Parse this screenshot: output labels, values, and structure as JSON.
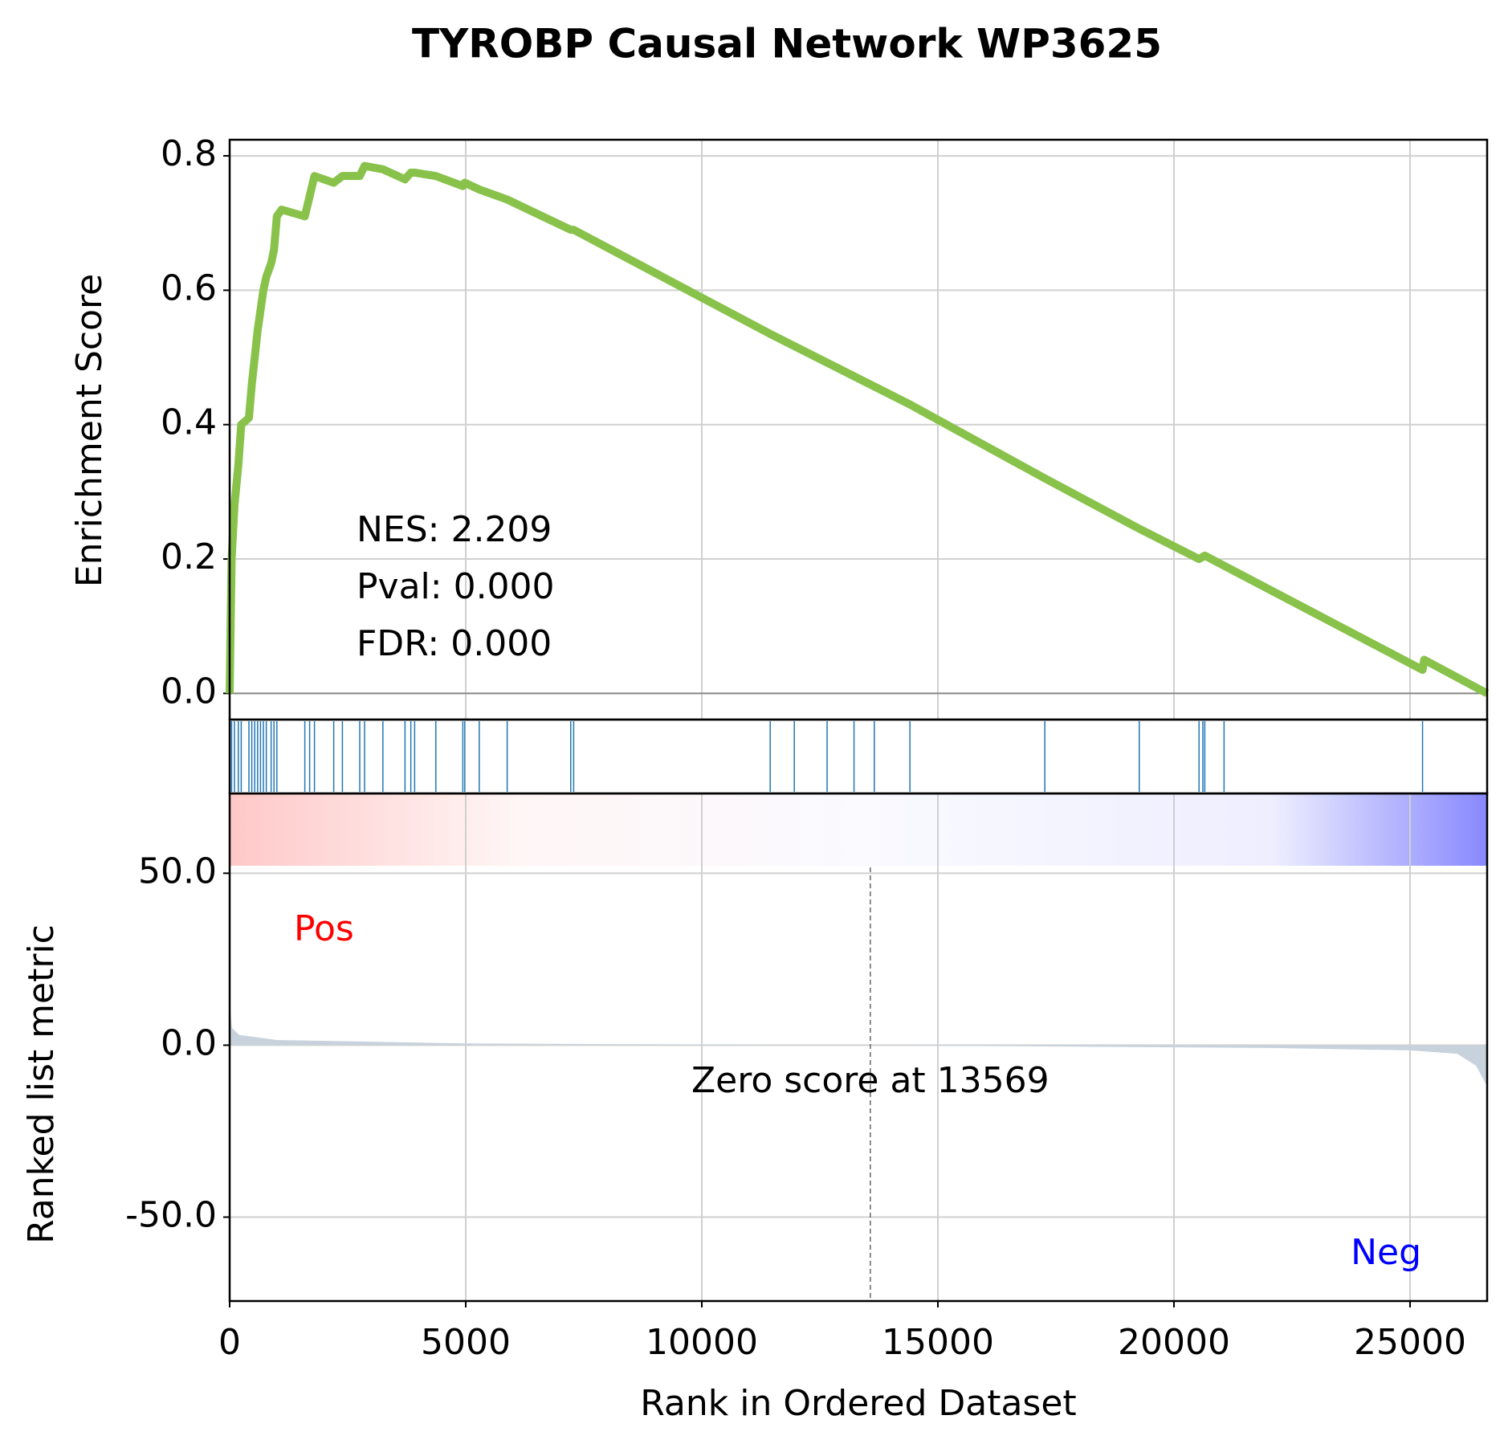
{
  "chart_data": [
    {
      "type": "line",
      "title": "TYROBP Causal Network WP3625",
      "ylabel": "Enrichment Score",
      "color": "#88c24a",
      "x": [
        0,
        41,
        102,
        184,
        245,
        408,
        469,
        531,
        592,
        653,
        714,
        776,
        878,
        939,
        1000,
        1100,
        1592,
        1694,
        1796,
        2204,
        2388,
        2755,
        2857,
        3245,
        3714,
        3837,
        3918,
        4367,
        4939,
        4980,
        5286,
        5878,
        7224,
        7286,
        11449,
        14408,
        17265,
        19265,
        20531,
        20653,
        21061,
        25265,
        25300,
        26632
      ],
      "values": [
        0,
        0.2,
        0.28,
        0.34,
        0.4,
        0.41,
        0.46,
        0.5,
        0.54,
        0.57,
        0.6,
        0.62,
        0.64,
        0.66,
        0.71,
        0.72,
        0.71,
        0.74,
        0.77,
        0.76,
        0.77,
        0.77,
        0.785,
        0.78,
        0.765,
        0.775,
        0.775,
        0.77,
        0.755,
        0.76,
        0.75,
        0.735,
        0.69,
        0.69,
        0.535,
        0.43,
        0.32,
        0.245,
        0.2,
        0.205,
        0.19,
        0.035,
        0.05,
        0
      ],
      "xlim": [
        0,
        26633
      ],
      "ylim": [
        -0.039,
        0.824
      ],
      "yticks": [
        {
          "value": 0,
          "label": "0.0"
        },
        0.2,
        0.4,
        0.6,
        0.8
      ],
      "annotations": [
        "NES: 2.209",
        "Pval: 0.000",
        "FDR: 0.000"
      ],
      "grid": true
    },
    {
      "type": "hits",
      "color": "#1f77b4",
      "xlim": [
        0,
        26633
      ],
      "x": [
        41,
        102,
        184,
        245,
        408,
        469,
        531,
        592,
        653,
        714,
        776,
        878,
        939,
        1000,
        1592,
        1694,
        1796,
        2204,
        2388,
        2755,
        2857,
        3245,
        3714,
        3837,
        3918,
        4367,
        4939,
        4980,
        5286,
        5878,
        7224,
        7286,
        11449,
        11959,
        12653,
        13224,
        13653,
        14408,
        17265,
        19265,
        20531,
        20612,
        20653,
        21061,
        25265
      ]
    },
    {
      "type": "area",
      "ylabel": "Ranked list metric",
      "xlabel": "Rank in Ordered Dataset",
      "color": "#c8d2dc",
      "x": [
        0,
        50,
        200,
        1000,
        5000,
        13569,
        22000,
        25000,
        26000,
        26400,
        26632
      ],
      "values": [
        12,
        5,
        3,
        1.5,
        0.5,
        0,
        -0.8,
        -1.5,
        -2.5,
        -6,
        -12
      ],
      "xlim": [
        0,
        26633
      ],
      "ylim": [
        -74.4,
        73.2
      ],
      "xticks": [
        0,
        5000,
        10000,
        15000,
        20000,
        25000
      ],
      "yticks": [
        {
          "value": 50,
          "label": "50.0"
        },
        {
          "value": 0,
          "label": "0.0"
        },
        {
          "value": -50,
          "label": "-50.0"
        }
      ],
      "pos_label": "Pos",
      "neg_label": "Neg",
      "zero_score_rank": 13569,
      "zero_score_label": "Zero score at 13569",
      "grid": true
    }
  ]
}
